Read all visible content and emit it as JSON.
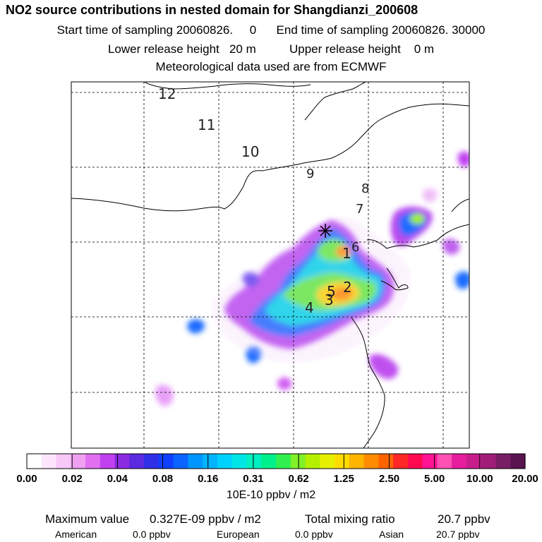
{
  "header": {
    "title": "NO2 source contributions in nested domain for Shangdianzi_200608",
    "start_label": "Start time of sampling",
    "start_value": "20060826.     0",
    "end_label": "End time of sampling",
    "end_value": "20060826. 30000",
    "lower_label": "Lower release height",
    "lower_value": "20 m",
    "upper_label": "Upper release height",
    "upper_value": "0 m",
    "met_line": "Meteorological data used are from ECMWF"
  },
  "chart_data": {
    "type": "heatmap",
    "title": "NO2 source contributions in nested domain for Shangdianzi_200608",
    "receptor_marker": "Shangdianzi (star)",
    "contour_labels": [
      "12",
      "11",
      "10",
      "9",
      "8",
      "7",
      "6",
      "5",
      "4",
      "3",
      "2",
      "1"
    ],
    "colorbar": {
      "unit": "10E-10 ppbv / m2",
      "tick_labels": [
        "0.00",
        "0.02",
        "0.04",
        "0.08",
        "0.16",
        "0.31",
        "0.62",
        "1.25",
        "2.50",
        "5.00",
        "10.00",
        "20.00"
      ],
      "colors": [
        "#ffffff",
        "#fde6fd",
        "#f8c8f8",
        "#f0a0f0",
        "#e070f0",
        "#c040f0",
        "#8a2be2",
        "#5a2be0",
        "#3030e8",
        "#1040ff",
        "#0a64ff",
        "#0096ff",
        "#00b4ff",
        "#00d2ff",
        "#00e6e6",
        "#00f0c0",
        "#00f08c",
        "#30f050",
        "#80f028",
        "#b4f000",
        "#e6f000",
        "#ffdc00",
        "#ffb400",
        "#ff8c00",
        "#ff6400",
        "#ff2828",
        "#ff0a50",
        "#ff1493",
        "#ff50b4",
        "#e61e9e",
        "#c81e8c",
        "#a01e78",
        "#781e64",
        "#5a1450"
      ]
    },
    "max_value_label": "Maximum value",
    "max_value": "0.327E-09 ppbv / m2",
    "total_label": "Total mixing ratio",
    "total_value": "20.7 ppbv",
    "regions": [
      {
        "name": "American",
        "value": "0.0 ppbv"
      },
      {
        "name": "European",
        "value": "0.0 ppbv"
      },
      {
        "name": "Asian",
        "value": "20.7 ppbv"
      }
    ]
  }
}
